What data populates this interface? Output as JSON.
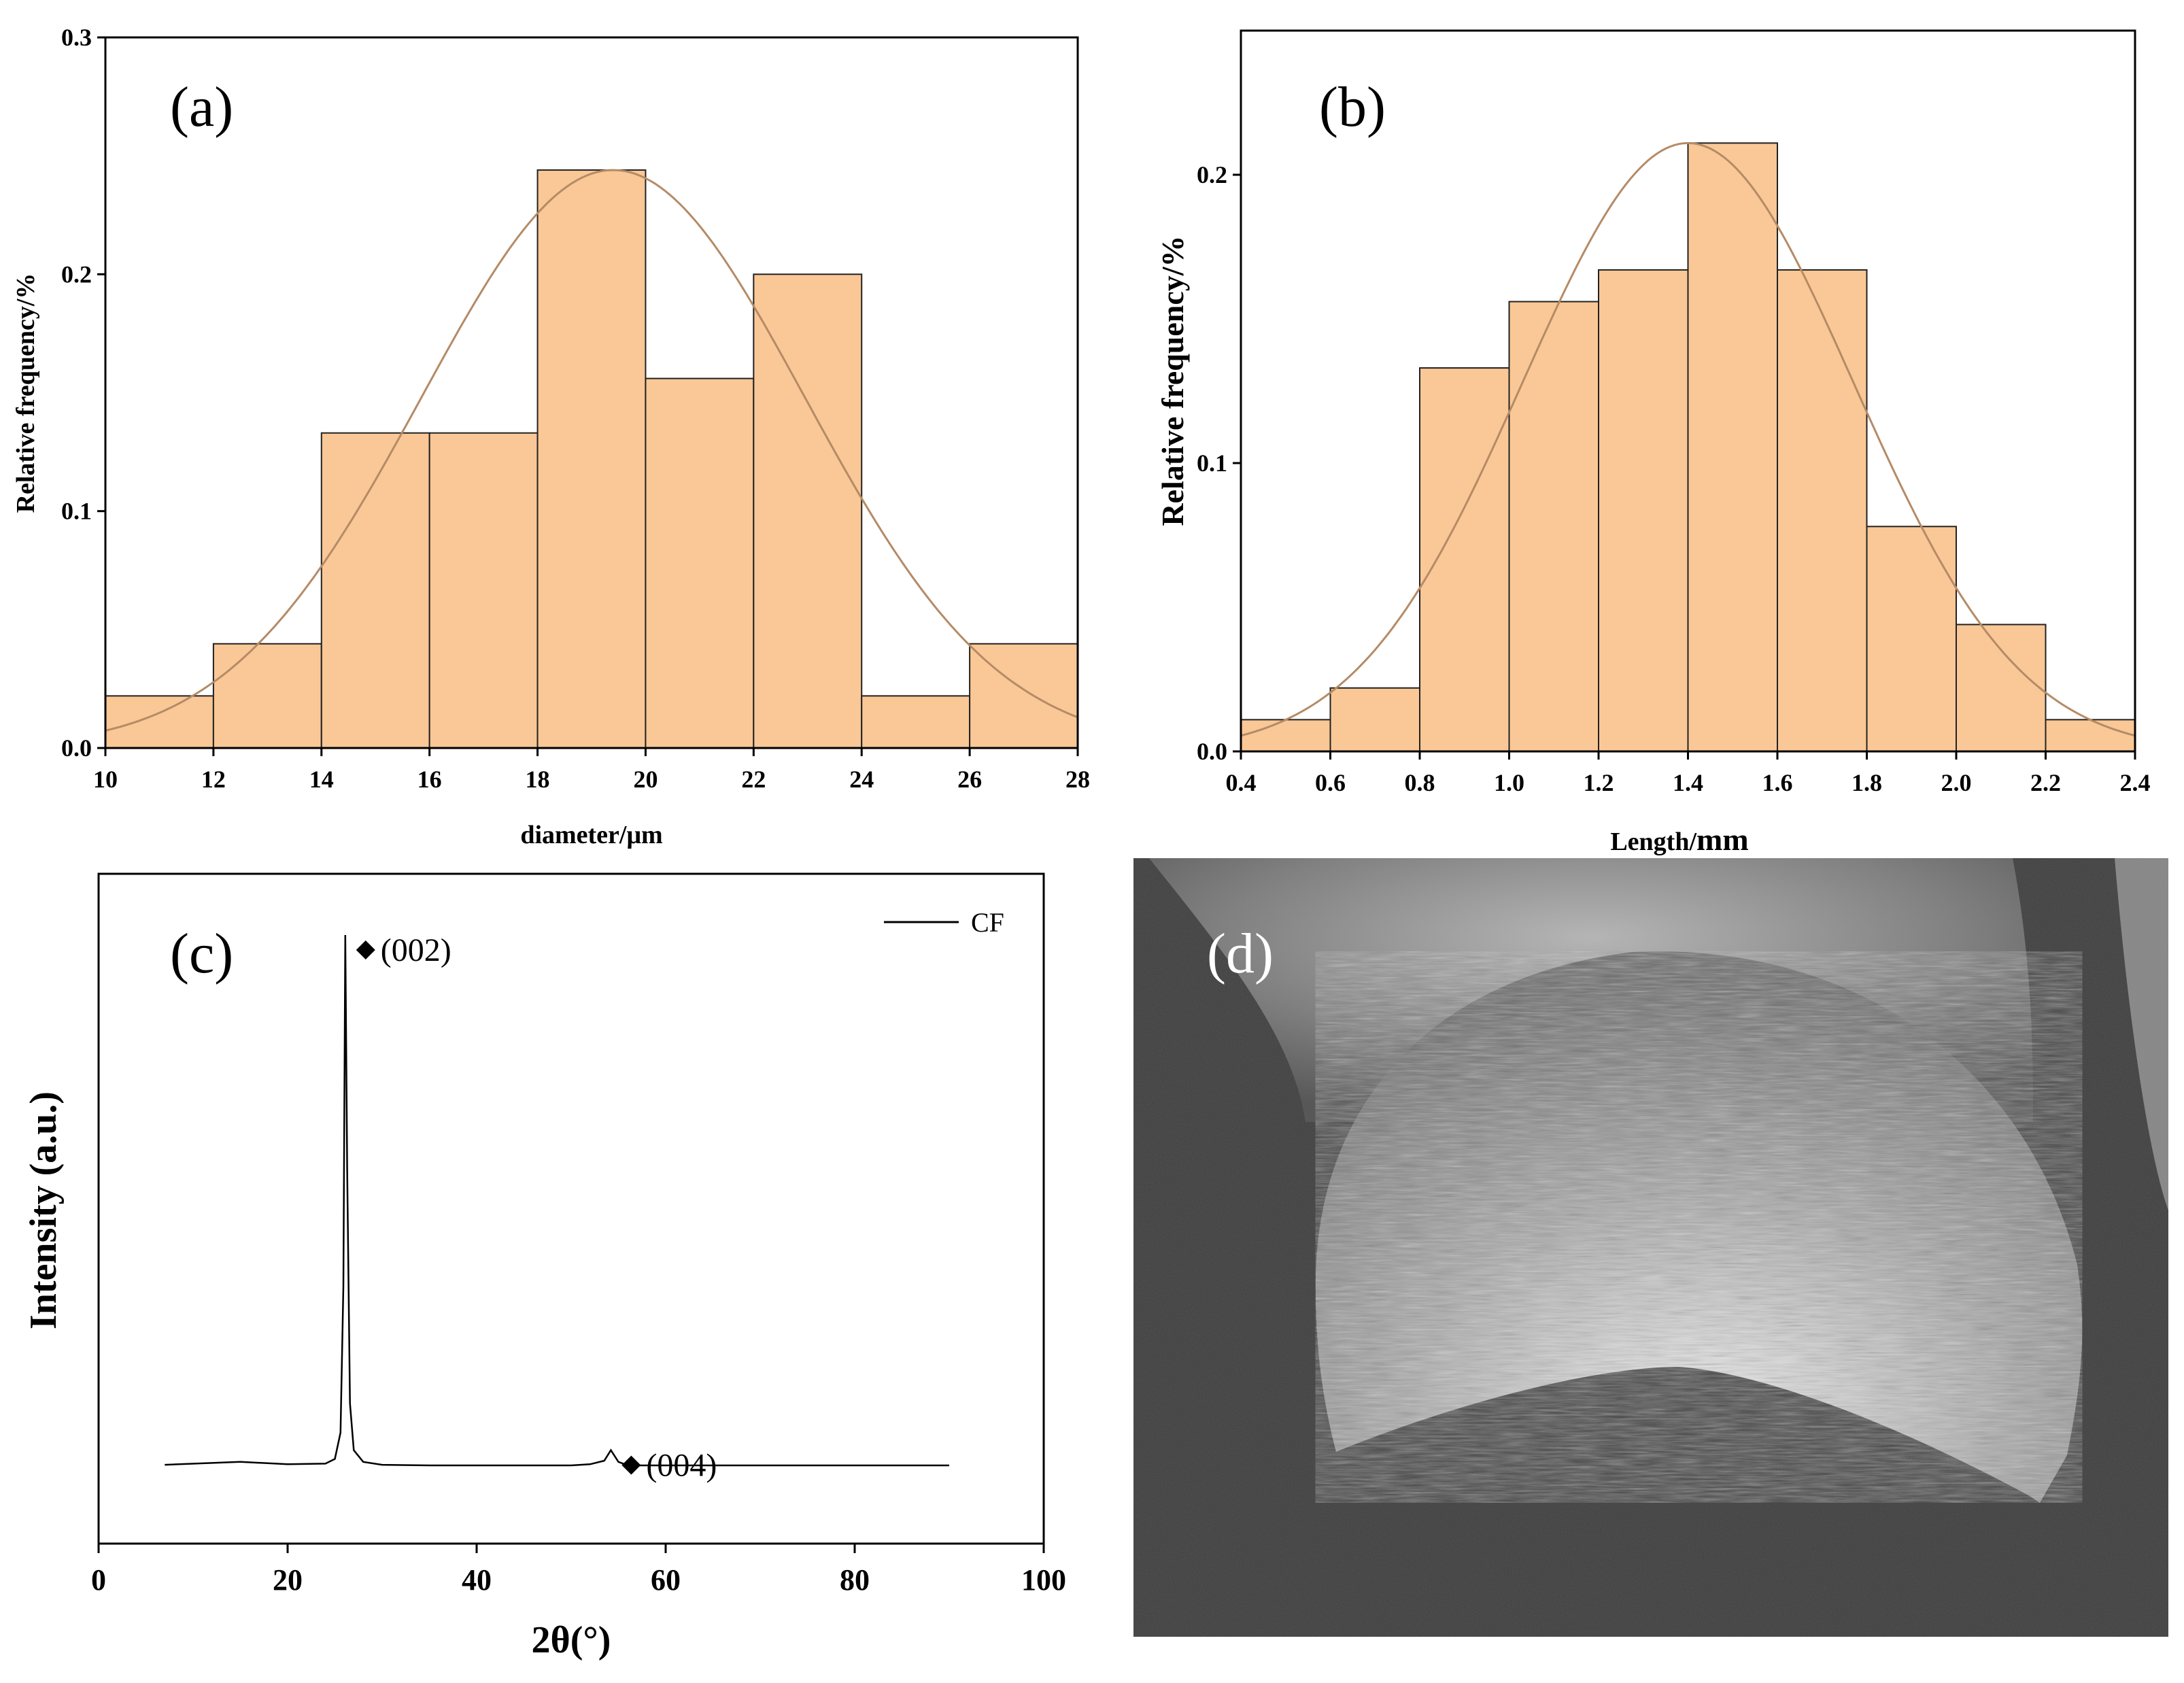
{
  "chart_data": [
    {
      "panel": "(a)",
      "type": "bar",
      "subtype": "histogram-with-normal-fit",
      "xlabel": "diameter/μm",
      "ylabel": "Relative frequency/%",
      "xlim": [
        10,
        28
      ],
      "ylim": [
        0,
        0.3
      ],
      "xticks": [
        "10",
        "12",
        "14",
        "16",
        "18",
        "20",
        "22",
        "24",
        "26",
        "28"
      ],
      "yticks": [
        "0.0",
        "0.1",
        "0.2",
        "0.3"
      ],
      "bins": [
        [
          10,
          12
        ],
        [
          12,
          14
        ],
        [
          14,
          16
        ],
        [
          16,
          18
        ],
        [
          18,
          20
        ],
        [
          20,
          22
        ],
        [
          22,
          24
        ],
        [
          24,
          26
        ],
        [
          26,
          28
        ]
      ],
      "values": [
        0.022,
        0.044,
        0.133,
        0.133,
        0.244,
        0.156,
        0.2,
        0.022,
        0.044
      ],
      "fit": {
        "type": "normal",
        "mean": 19.4,
        "sigma": 3.55,
        "peak": 0.244
      },
      "bar_color": "#f9c896",
      "fit_color": "#b58b66"
    },
    {
      "panel": "(b)",
      "type": "bar",
      "subtype": "histogram-with-normal-fit",
      "xlabel_prefix": "Length/",
      "xlabel_unit": "mm",
      "ylabel": "Relative frequency/%",
      "xlim": [
        0.4,
        2.4
      ],
      "ylim": [
        0,
        0.25
      ],
      "xticks": [
        "0.4",
        "0.6",
        "0.8",
        "1.0",
        "1.2",
        "1.4",
        "1.6",
        "1.8",
        "2.0",
        "2.2",
        "2.4"
      ],
      "yticks": [
        "0.0",
        "0.1",
        "0.2"
      ],
      "bins": [
        [
          0.4,
          0.6
        ],
        [
          0.6,
          0.8
        ],
        [
          0.8,
          1.0
        ],
        [
          1.0,
          1.2
        ],
        [
          1.2,
          1.4
        ],
        [
          1.4,
          1.6
        ],
        [
          1.6,
          1.8
        ],
        [
          1.8,
          2.0
        ],
        [
          2.0,
          2.2
        ],
        [
          2.2,
          2.4
        ]
      ],
      "values": [
        0.011,
        0.022,
        0.133,
        0.156,
        0.167,
        0.211,
        0.167,
        0.078,
        0.044,
        0.011
      ],
      "fit": {
        "type": "normal",
        "mean": 1.4,
        "sigma": 0.37,
        "peak": 0.211
      },
      "bar_color": "#f9c896",
      "fit_color": "#b58b66"
    },
    {
      "panel": "(c)",
      "type": "line",
      "xlabel": "2θ(°)",
      "ylabel": "Intensity (a.u.)",
      "xlim": [
        0,
        100
      ],
      "ylim": [
        0,
        1
      ],
      "xticks": [
        "0",
        "20",
        "40",
        "60",
        "80",
        "100"
      ],
      "yticks": [],
      "series": [
        {
          "name": "CF",
          "x": [
            7,
            15,
            20,
            24,
            25,
            25.6,
            25.9,
            26.1,
            26.3,
            26.6,
            27,
            28,
            30,
            35,
            40,
            45,
            50,
            52,
            53.5,
            54.2,
            55,
            56,
            60,
            70,
            80,
            90
          ],
          "y": [
            0.095,
            0.1,
            0.096,
            0.097,
            0.105,
            0.15,
            0.4,
            1.0,
            0.6,
            0.2,
            0.12,
            0.1,
            0.095,
            0.094,
            0.094,
            0.094,
            0.094,
            0.096,
            0.102,
            0.12,
            0.1,
            0.094,
            0.094,
            0.094,
            0.094,
            0.094
          ]
        }
      ],
      "peaks": [
        {
          "label": "(002)",
          "x": 26.1,
          "y": 1.0
        },
        {
          "label": "(004)",
          "x": 54.2,
          "y": 0.12
        }
      ],
      "legend": "top-right"
    }
  ],
  "image_panel": {
    "label": "(d)",
    "content": "SEM micrograph of fractured carbon fiber cross-section"
  }
}
